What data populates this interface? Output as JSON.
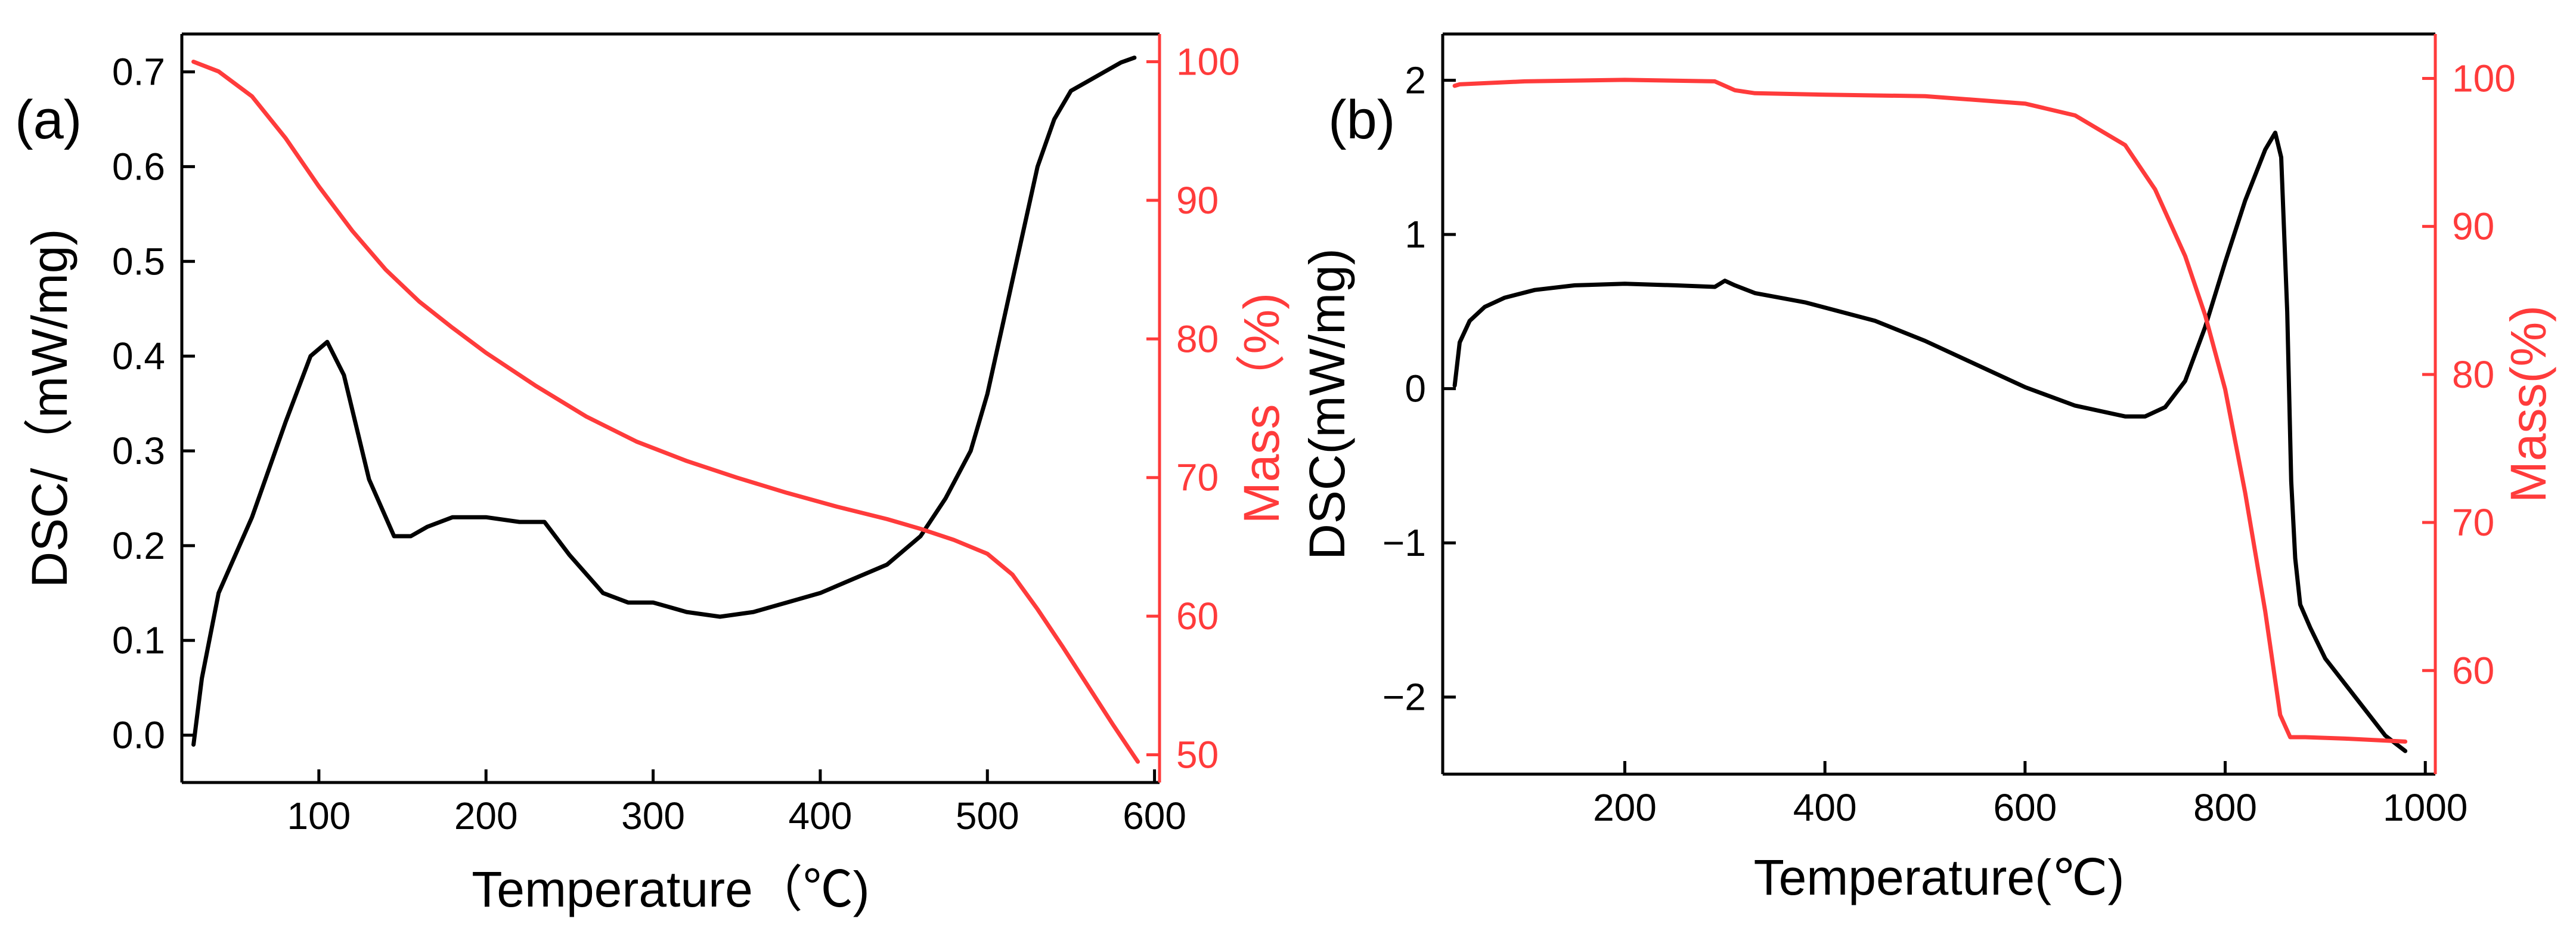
{
  "colors": {
    "dsc": "#000000",
    "mass": "#ff3b3b",
    "axis": "#000000"
  },
  "chart_data": [
    {
      "panel": "(a)",
      "type": "line",
      "title": "",
      "xlabel": "Temperature（℃)",
      "ylabel_left": "DSC/（mW/mg)",
      "ylabel_right": "Mass（%)",
      "xlim": [
        18,
        603
      ],
      "ylim_left": [
        -0.05,
        0.74
      ],
      "ylim_right": [
        48,
        102
      ],
      "xticks": [
        100,
        200,
        300,
        400,
        500,
        600
      ],
      "xtick_labels": [
        "100",
        "200",
        "300",
        "400",
        "500",
        "600"
      ],
      "yticks_left": [
        0.0,
        0.1,
        0.2,
        0.3,
        0.4,
        0.5,
        0.6,
        0.7
      ],
      "ytick_labels_left": [
        "0.0",
        "0.1",
        "0.2",
        "0.3",
        "0.4",
        "0.5",
        "0.6",
        "0.7"
      ],
      "yticks_right": [
        50,
        60,
        70,
        80,
        90,
        100
      ],
      "ytick_labels_right": [
        "50",
        "60",
        "70",
        "80",
        "90",
        "100"
      ],
      "series": [
        {
          "name": "DSC",
          "axis": "left",
          "color": "#000000",
          "x": [
            25,
            30,
            40,
            60,
            80,
            95,
            105,
            115,
            130,
            145,
            155,
            165,
            180,
            200,
            220,
            235,
            250,
            270,
            285,
            300,
            310,
            320,
            340,
            360,
            380,
            400,
            420,
            440,
            460,
            475,
            490,
            500,
            510,
            520,
            530,
            540,
            550,
            560,
            570,
            580,
            588
          ],
          "y": [
            -0.01,
            0.06,
            0.15,
            0.23,
            0.33,
            0.4,
            0.415,
            0.38,
            0.27,
            0.21,
            0.21,
            0.22,
            0.23,
            0.23,
            0.225,
            0.225,
            0.19,
            0.15,
            0.14,
            0.14,
            0.135,
            0.13,
            0.125,
            0.13,
            0.14,
            0.15,
            0.165,
            0.18,
            0.21,
            0.25,
            0.3,
            0.36,
            0.44,
            0.52,
            0.6,
            0.65,
            0.68,
            0.69,
            0.7,
            0.71,
            0.715
          ]
        },
        {
          "name": "Mass",
          "axis": "right",
          "color": "#ff3b3b",
          "x": [
            25,
            40,
            60,
            80,
            100,
            120,
            140,
            160,
            180,
            200,
            230,
            260,
            290,
            320,
            350,
            380,
            410,
            440,
            460,
            480,
            500,
            515,
            530,
            545,
            560,
            575,
            590
          ],
          "y": [
            100,
            99.3,
            97.5,
            94.5,
            91,
            87.8,
            85,
            82.7,
            80.8,
            79,
            76.6,
            74.4,
            72.6,
            71.2,
            70,
            68.9,
            67.9,
            67,
            66.3,
            65.5,
            64.5,
            63,
            60.5,
            57.8,
            55,
            52.2,
            49.5
          ]
        }
      ]
    },
    {
      "panel": "(b)",
      "type": "line",
      "title": "",
      "xlabel": "Temperature(℃)",
      "ylabel_left": "DSC(mW/mg)",
      "ylabel_right": "Mass(%)",
      "xlim": [
        18,
        1010
      ],
      "ylim_left": [
        -2.5,
        2.3
      ],
      "ylim_right": [
        53,
        103
      ],
      "xticks": [
        200,
        400,
        600,
        800,
        1000
      ],
      "xtick_labels": [
        "200",
        "400",
        "600",
        "800",
        "1000"
      ],
      "yticks_left": [
        -2,
        -1,
        0,
        1,
        2
      ],
      "ytick_labels_left": [
        "−2",
        "−1",
        "0",
        "1",
        "2"
      ],
      "yticks_right": [
        60,
        70,
        80,
        90,
        100
      ],
      "ytick_labels_right": [
        "60",
        "70",
        "80",
        "90",
        "100"
      ],
      "series": [
        {
          "name": "DSC",
          "axis": "left",
          "color": "#000000",
          "x": [
            30,
            35,
            45,
            60,
            80,
            110,
            150,
            200,
            250,
            290,
            300,
            310,
            330,
            380,
            450,
            500,
            550,
            600,
            650,
            700,
            720,
            740,
            760,
            780,
            800,
            820,
            840,
            850,
            856,
            862,
            866,
            870,
            875,
            885,
            900,
            930,
            960,
            980
          ],
          "y": [
            0.02,
            0.3,
            0.44,
            0.53,
            0.59,
            0.64,
            0.67,
            0.68,
            0.67,
            0.66,
            0.7,
            0.67,
            0.62,
            0.56,
            0.44,
            0.31,
            0.16,
            0.01,
            -0.11,
            -0.18,
            -0.18,
            -0.12,
            0.05,
            0.4,
            0.82,
            1.22,
            1.55,
            1.66,
            1.5,
            0.5,
            -0.6,
            -1.1,
            -1.4,
            -1.55,
            -1.75,
            -2.0,
            -2.25,
            -2.35
          ]
        },
        {
          "name": "Mass",
          "axis": "right",
          "color": "#ff3b3b",
          "x": [
            30,
            35,
            100,
            200,
            290,
            310,
            330,
            400,
            500,
            600,
            650,
            700,
            730,
            760,
            780,
            800,
            820,
            840,
            855,
            865,
            880,
            920,
            980
          ],
          "y": [
            99.5,
            99.6,
            99.8,
            99.9,
            99.8,
            99.2,
            99.0,
            98.9,
            98.8,
            98.3,
            97.5,
            95.5,
            92.5,
            88,
            84,
            79,
            72,
            64,
            57,
            55.5,
            55.5,
            55.4,
            55.2
          ]
        }
      ]
    }
  ]
}
